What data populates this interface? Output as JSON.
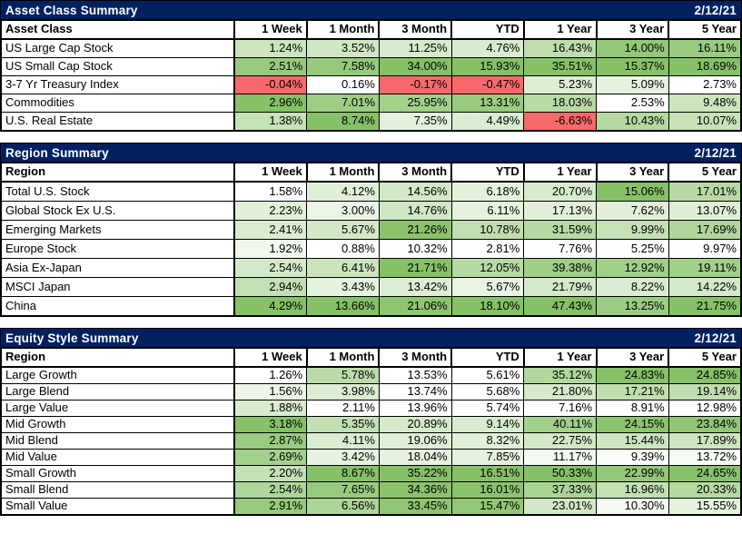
{
  "report_date": "2/12/21",
  "colors": {
    "title_bar_bg": "#002060",
    "title_bar_text": "#FFFFFF",
    "border": "#000000",
    "negative_bg": "#F8696B",
    "positive_max_bg": "#86C167",
    "neutral_bg": "#FFFFFF",
    "text": "#000000"
  },
  "chart_data": [
    {
      "type": "table",
      "title": "Asset Class Summary",
      "date": "2/12/21",
      "label_header": "Asset Class",
      "columns": [
        "1 Week",
        "1 Month",
        "3 Month",
        "YTD",
        "1 Year",
        "3 Year",
        "5 Year"
      ],
      "value_format": "percent_2dp",
      "heatmap": "per-column white-to-green, negatives solid red",
      "rows": [
        {
          "label": "US Large Cap Stock",
          "values": [
            1.24,
            3.52,
            11.25,
            4.76,
            16.43,
            14.0,
            16.11
          ]
        },
        {
          "label": "US Small Cap Stock",
          "values": [
            2.51,
            7.58,
            34.0,
            15.93,
            35.51,
            15.37,
            18.69
          ]
        },
        {
          "label": "3-7 Yr Treasury Index",
          "values": [
            -0.04,
            0.16,
            -0.17,
            -0.47,
            5.23,
            5.09,
            2.73
          ]
        },
        {
          "label": "Commodities",
          "values": [
            2.96,
            7.01,
            25.95,
            13.31,
            18.03,
            2.53,
            9.48
          ]
        },
        {
          "label": "U.S. Real Estate",
          "values": [
            1.38,
            8.74,
            7.35,
            4.49,
            -6.63,
            10.43,
            10.07
          ]
        }
      ]
    },
    {
      "type": "table",
      "title": "Region Summary",
      "date": "2/12/21",
      "label_header": "Region",
      "columns": [
        "1 Week",
        "1 Month",
        "3 Month",
        "YTD",
        "1 Year",
        "3 Year",
        "5 Year"
      ],
      "value_format": "percent_2dp",
      "heatmap": "per-column white-to-green, negatives solid red",
      "rows": [
        {
          "label": "Total U.S. Stock",
          "values": [
            1.58,
            4.12,
            14.56,
            6.18,
            20.7,
            15.06,
            17.01
          ]
        },
        {
          "label": "Global Stock Ex U.S.",
          "values": [
            2.23,
            3.0,
            14.76,
            6.11,
            17.13,
            7.62,
            13.07
          ]
        },
        {
          "label": "Emerging Markets",
          "values": [
            2.41,
            5.67,
            21.26,
            10.78,
            31.59,
            9.99,
            17.69
          ]
        },
        {
          "label": "Europe Stock",
          "values": [
            1.92,
            0.88,
            10.32,
            2.81,
            7.76,
            5.25,
            9.97
          ]
        },
        {
          "label": "Asia Ex-Japan",
          "values": [
            2.54,
            6.41,
            21.71,
            12.05,
            39.38,
            12.92,
            19.11
          ]
        },
        {
          "label": "MSCI Japan",
          "values": [
            2.94,
            3.43,
            13.42,
            5.67,
            21.79,
            8.22,
            14.22
          ]
        },
        {
          "label": "China",
          "values": [
            4.29,
            13.66,
            21.06,
            18.1,
            47.43,
            13.25,
            21.75
          ]
        }
      ]
    },
    {
      "type": "table",
      "title": "Equity Style Summary",
      "date": "2/12/21",
      "label_header": "Region",
      "columns": [
        "1 Week",
        "1 Month",
        "3 Month",
        "YTD",
        "1 Year",
        "3 Year",
        "5 Year"
      ],
      "value_format": "percent_2dp",
      "heatmap": "per-column white-to-green, negatives solid red",
      "rows": [
        {
          "label": "Large Growth",
          "values": [
            1.26,
            5.78,
            13.53,
            5.61,
            35.12,
            24.83,
            24.85
          ]
        },
        {
          "label": "Large Blend",
          "values": [
            1.56,
            3.98,
            13.74,
            5.68,
            21.8,
            17.21,
            19.14
          ]
        },
        {
          "label": "Large Value",
          "values": [
            1.88,
            2.11,
            13.96,
            5.74,
            7.16,
            8.91,
            12.98
          ]
        },
        {
          "label": "Mid Growth",
          "values": [
            3.18,
            5.35,
            20.89,
            9.14,
            40.11,
            24.15,
            23.84
          ]
        },
        {
          "label": "Mid Blend",
          "values": [
            2.87,
            4.11,
            19.06,
            8.32,
            22.75,
            15.44,
            17.89
          ]
        },
        {
          "label": "Mid Value",
          "values": [
            2.69,
            3.42,
            18.04,
            7.85,
            11.17,
            9.39,
            13.72
          ]
        },
        {
          "label": "Small Growth",
          "values": [
            2.2,
            8.67,
            35.22,
            16.51,
            50.33,
            22.99,
            24.65
          ]
        },
        {
          "label": "Small Blend",
          "values": [
            2.54,
            7.65,
            34.36,
            16.01,
            37.33,
            16.96,
            20.33
          ]
        },
        {
          "label": "Small Value",
          "values": [
            2.91,
            6.56,
            33.45,
            15.47,
            23.01,
            10.3,
            15.55
          ]
        }
      ]
    }
  ]
}
